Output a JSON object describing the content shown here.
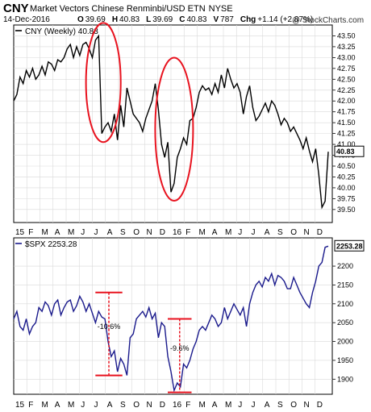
{
  "header": {
    "ticker": "CNY",
    "description": "Market Vectors Chinese Renminbi/USD ETN",
    "exchange": "NYSE",
    "date": "14-Dec-2016",
    "quote": [
      {
        "k": "O",
        "v": "39.69"
      },
      {
        "k": "H",
        "v": "40.83"
      },
      {
        "k": "L",
        "v": "39.69"
      },
      {
        "k": "C",
        "v": "40.83"
      },
      {
        "k": "V",
        "v": "787"
      },
      {
        "k": "Chg",
        "v": "+1.14 (+2.87%)"
      }
    ],
    "copyright": "@ StockCharts.com"
  },
  "colors": {
    "cny_line": "#000000",
    "spx_line": "#1a1a8c",
    "annotation": "#e8131f",
    "grid": "#d9d9d9"
  },
  "chart_data": [
    {
      "type": "line",
      "legend": "CNY (Weekly) 40.83",
      "last_value": "40.83",
      "ylim": [
        39.2,
        43.75
      ],
      "yticks": [
        "43.50",
        "43.25",
        "43.00",
        "42.75",
        "42.50",
        "42.25",
        "42.00",
        "41.75",
        "41.50",
        "41.25",
        "41.00",
        "40.75",
        "40.50",
        "40.25",
        "40.00",
        "39.75",
        "39.50"
      ],
      "x_months": [
        "15",
        "F",
        "M",
        "A",
        "M",
        "J",
        "J",
        "A",
        "S",
        "O",
        "N",
        "D",
        "16",
        "F",
        "M",
        "A",
        "M",
        "J",
        "J",
        "A",
        "S",
        "O",
        "N",
        "D"
      ],
      "x": [
        0,
        1,
        2,
        3,
        4,
        5,
        6,
        7,
        8,
        9,
        10,
        11,
        12,
        13,
        14,
        15,
        16,
        17,
        18,
        19,
        20,
        21,
        22,
        23,
        24,
        25,
        26,
        27,
        28,
        29,
        30,
        31,
        32,
        33,
        34,
        35,
        36,
        37,
        38,
        39,
        40,
        41,
        42,
        43,
        44,
        45,
        46,
        47,
        48,
        49,
        50,
        51,
        52,
        53,
        54,
        55,
        56,
        57,
        58,
        59,
        60,
        61,
        62,
        63,
        64,
        65,
        66,
        67,
        68,
        69,
        70,
        71,
        72,
        73,
        74,
        75,
        76,
        77,
        78,
        79,
        80,
        81,
        82,
        83,
        84,
        85,
        86,
        87,
        88,
        89,
        90,
        91,
        92,
        93,
        94,
        95,
        96,
        97,
        98,
        99,
        100
      ],
      "values": [
        42.0,
        42.15,
        42.55,
        42.4,
        42.7,
        42.55,
        42.75,
        42.5,
        42.6,
        42.8,
        42.6,
        42.9,
        42.85,
        42.7,
        42.95,
        42.9,
        43.0,
        43.2,
        43.3,
        43.0,
        43.25,
        43.05,
        43.3,
        43.35,
        43.2,
        43.0,
        43.4,
        43.5,
        41.25,
        41.4,
        41.5,
        41.3,
        41.7,
        41.1,
        41.9,
        41.4,
        42.3,
        42.0,
        41.7,
        41.6,
        41.5,
        41.3,
        41.6,
        41.8,
        42.0,
        42.4,
        41.8,
        41.0,
        40.7,
        41.05,
        39.9,
        40.1,
        40.7,
        40.9,
        41.15,
        41.0,
        41.55,
        41.6,
        41.85,
        42.2,
        42.35,
        42.25,
        42.3,
        42.15,
        42.4,
        42.2,
        42.6,
        42.3,
        42.75,
        42.5,
        42.3,
        42.4,
        42.2,
        41.7,
        42.1,
        42.35,
        41.85,
        41.55,
        41.65,
        41.8,
        41.95,
        41.75,
        42.0,
        41.9,
        41.7,
        41.45,
        41.6,
        41.5,
        41.3,
        41.4,
        41.25,
        41.1,
        40.9,
        41.15,
        40.85,
        40.6,
        40.9,
        40.3,
        39.55,
        39.69,
        40.83
      ]
    },
    {
      "type": "line",
      "legend": "$SPX 2253.28",
      "last_value": "2253.28",
      "ylim": [
        1860,
        2275
      ],
      "yticks": [
        "2200",
        "2150",
        "2100",
        "2050",
        "2000",
        "1950",
        "1900"
      ],
      "x_months": [
        "15",
        "F",
        "M",
        "A",
        "M",
        "J",
        "J",
        "A",
        "S",
        "O",
        "N",
        "D",
        "16",
        "F",
        "M",
        "A",
        "M",
        "J",
        "J",
        "A",
        "S",
        "O",
        "N",
        "D"
      ],
      "x": [
        0,
        1,
        2,
        3,
        4,
        5,
        6,
        7,
        8,
        9,
        10,
        11,
        12,
        13,
        14,
        15,
        16,
        17,
        18,
        19,
        20,
        21,
        22,
        23,
        24,
        25,
        26,
        27,
        28,
        29,
        30,
        31,
        32,
        33,
        34,
        35,
        36,
        37,
        38,
        39,
        40,
        41,
        42,
        43,
        44,
        45,
        46,
        47,
        48,
        49,
        50,
        51,
        52,
        53,
        54,
        55,
        56,
        57,
        58,
        59,
        60,
        61,
        62,
        63,
        64,
        65,
        66,
        67,
        68,
        69,
        70,
        71,
        72,
        73,
        74,
        75,
        76,
        77,
        78,
        79,
        80,
        81,
        82,
        83,
        84,
        85,
        86,
        87,
        88,
        89,
        90,
        91,
        92,
        93,
        94,
        95,
        96,
        97,
        98,
        99,
        100
      ],
      "values": [
        2060,
        2080,
        2040,
        2030,
        2060,
        2020,
        2040,
        2050,
        2090,
        2080,
        2105,
        2095,
        2070,
        2100,
        2110,
        2070,
        2090,
        2105,
        2110,
        2080,
        2095,
        2120,
        2105,
        2080,
        2100,
        2075,
        2050,
        2080,
        2065,
        2060,
        2000,
        1960,
        1975,
        1920,
        1955,
        1940,
        1910,
        2010,
        2020,
        2060,
        2070,
        2080,
        2065,
        2090,
        2060,
        2075,
        2010,
        2050,
        2040,
        1960,
        1920,
        1870,
        1890,
        1880,
        1940,
        1930,
        1950,
        1980,
        2000,
        2030,
        2040,
        2030,
        2050,
        2070,
        2060,
        2040,
        2050,
        2090,
        2060,
        2080,
        2100,
        2085,
        2070,
        2090,
        2040,
        2100,
        2130,
        2150,
        2160,
        2145,
        2170,
        2160,
        2180,
        2150,
        2175,
        2170,
        2160,
        2140,
        2140,
        2170,
        2150,
        2130,
        2115,
        2100,
        2090,
        2130,
        2160,
        2200,
        2210,
        2250,
        2253
      ]
    }
  ],
  "annotations": {
    "drop1_label": "-10.6%",
    "drop2_label": "-9.6%",
    "drop1": {
      "x_start": 27,
      "x_end": 33,
      "top": 2130,
      "bottom": 1910
    },
    "drop2": {
      "x_start": 50,
      "x_end": 55,
      "top": 2060,
      "bottom": 1865
    }
  }
}
